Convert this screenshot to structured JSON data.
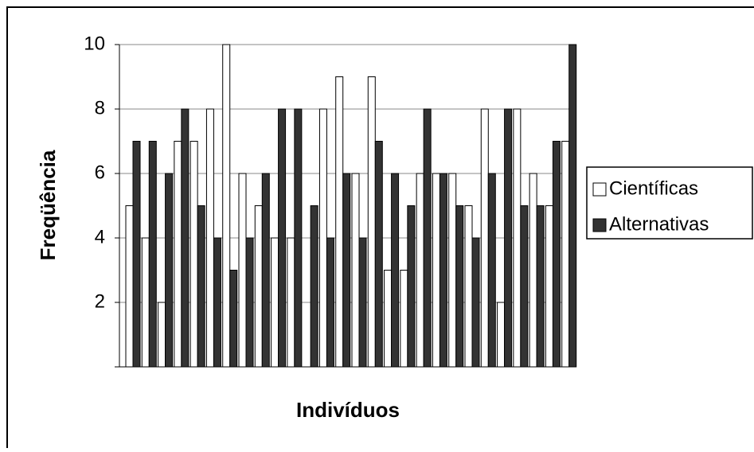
{
  "chart_data": {
    "type": "bar",
    "x_label": "Indivíduos",
    "y_label": "Freqüência",
    "categories": [
      null,
      null,
      null,
      null,
      null,
      null,
      null,
      null,
      null,
      null,
      null,
      null,
      null,
      null,
      null,
      null,
      null,
      null,
      null,
      null,
      null,
      null,
      null,
      null,
      null,
      null,
      null,
      null
    ],
    "series": [
      {
        "name": "Científicas",
        "color": "#ffffff",
        "values": [
          5,
          4,
          2,
          7,
          7,
          8,
          10,
          6,
          5,
          4,
          4,
          0,
          8,
          9,
          6,
          9,
          3,
          3,
          6,
          6,
          6,
          5,
          8,
          2,
          8,
          6,
          5,
          7
        ]
      },
      {
        "name": "Alternativas",
        "color": "#333333",
        "values": [
          7,
          7,
          6,
          8,
          5,
          4,
          3,
          4,
          6,
          8,
          8,
          5,
          4,
          6,
          4,
          7,
          6,
          5,
          8,
          6,
          5,
          4,
          6,
          8,
          5,
          5,
          7,
          10
        ]
      }
    ],
    "ylim": [
      0,
      10
    ],
    "yticks": [
      2,
      4,
      6,
      8,
      10
    ],
    "grid": true,
    "legend": "right"
  }
}
